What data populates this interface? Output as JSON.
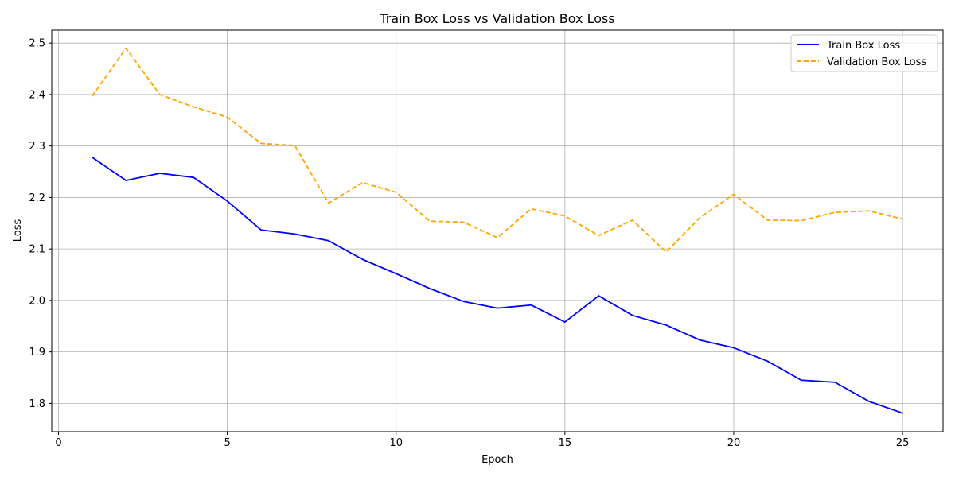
{
  "chart_data": {
    "type": "line",
    "title": "Train Box Loss vs Validation Box Loss",
    "xlabel": "Epoch",
    "ylabel": "Loss",
    "xlim": [
      -0.2,
      26.2
    ],
    "ylim": [
      1.745,
      2.525
    ],
    "xticks": [
      0,
      5,
      10,
      15,
      20,
      25
    ],
    "yticks": [
      1.8,
      1.9,
      2.0,
      2.1,
      2.2,
      2.3,
      2.4,
      2.5
    ],
    "xtick_labels": [
      "0",
      "5",
      "10",
      "15",
      "20",
      "25"
    ],
    "ytick_labels": [
      "1.8",
      "1.9",
      "2.0",
      "2.1",
      "2.2",
      "2.3",
      "2.4",
      "2.5"
    ],
    "grid": true,
    "legend_position": "top-right",
    "x": [
      1,
      2,
      3,
      4,
      5,
      6,
      7,
      8,
      9,
      10,
      11,
      12,
      13,
      14,
      15,
      16,
      17,
      18,
      19,
      20,
      21,
      22,
      23,
      24,
      25
    ],
    "series": [
      {
        "name": "Train Box Loss",
        "color": "#0000ff",
        "style": "solid",
        "values": [
          2.278,
          2.233,
          2.247,
          2.239,
          2.193,
          2.137,
          2.129,
          2.116,
          2.08,
          2.052,
          2.023,
          1.998,
          1.985,
          1.991,
          1.958,
          2.009,
          1.971,
          1.952,
          1.923,
          1.908,
          1.882,
          1.845,
          1.841,
          1.804,
          1.781
        ]
      },
      {
        "name": "Validation Box Loss",
        "color": "#ffa500",
        "style": "dashed",
        "values": [
          2.397,
          2.49,
          2.4,
          2.376,
          2.356,
          2.305,
          2.301,
          2.189,
          2.229,
          2.21,
          2.154,
          2.152,
          2.122,
          2.178,
          2.164,
          2.126,
          2.156,
          2.094,
          2.161,
          2.206,
          2.156,
          2.155,
          2.171,
          2.174,
          2.158
        ]
      }
    ]
  }
}
